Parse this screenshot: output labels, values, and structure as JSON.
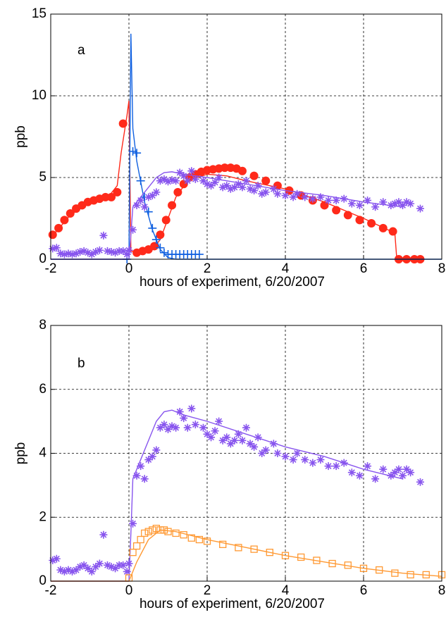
{
  "chart_data": [
    {
      "type": "line",
      "annotation": "a",
      "xlabel": "hours of experiment, 6/20/2007",
      "ylabel": "ppb",
      "xlim": [
        -2,
        8
      ],
      "xticks": [
        -2,
        0,
        2,
        4,
        6,
        8
      ],
      "ylim": [
        0,
        15
      ],
      "yticks": [
        0,
        5,
        10,
        15
      ],
      "grid": true,
      "series": [
        {
          "color": "#ff2a1a",
          "marker": "circle",
          "x": [
            -1.95,
            -1.8,
            -1.65,
            -1.5,
            -1.35,
            -1.2,
            -1.05,
            -0.9,
            -0.75,
            -0.6,
            -0.45,
            -0.3,
            -0.15,
            0.2,
            0.35,
            0.5,
            0.65,
            0.8,
            0.95,
            1.1,
            1.25,
            1.4,
            1.55,
            1.7,
            1.85,
            2.0,
            2.15,
            2.3,
            2.45,
            2.6,
            2.75,
            2.9,
            3.2,
            3.5,
            3.8,
            4.1,
            4.4,
            4.7,
            5.0,
            5.3,
            5.6,
            5.9,
            6.2,
            6.5,
            6.75,
            6.9,
            7.1,
            7.3,
            7.45
          ],
          "values": [
            1.5,
            1.9,
            2.4,
            2.8,
            3.1,
            3.3,
            3.5,
            3.6,
            3.7,
            3.8,
            3.8,
            4.1,
            8.3,
            0.4,
            0.5,
            0.6,
            0.8,
            1.5,
            2.4,
            3.3,
            4.1,
            4.6,
            5.0,
            5.2,
            5.35,
            5.45,
            5.5,
            5.55,
            5.6,
            5.6,
            5.55,
            5.4,
            5.1,
            4.8,
            4.5,
            4.2,
            3.9,
            3.6,
            3.3,
            3.0,
            2.7,
            2.4,
            2.2,
            1.9,
            1.7,
            0,
            0,
            0,
            0
          ]
        },
        {
          "color": "#ff2a1a",
          "marker": "none",
          "x": [
            -2,
            -1.5,
            -1,
            -0.5,
            -0.3,
            -0.2,
            -0.05,
            0,
            0.05,
            0.3,
            0.6,
            0.8,
            1,
            1.2,
            1.5,
            2,
            2.5,
            3,
            4,
            5,
            6,
            6.8,
            6.85,
            7.5
          ],
          "values": [
            1.3,
            2.7,
            3.5,
            3.9,
            4.5,
            6.5,
            8.8,
            9.7,
            0.5,
            0.4,
            0.6,
            1.2,
            2.5,
            3.8,
            4.8,
            5.2,
            5.1,
            4.8,
            4.3,
            3.5,
            2.5,
            1.6,
            0,
            0
          ]
        },
        {
          "color": "#1060e0",
          "marker": "plus",
          "x": [
            -0.05,
            0.1,
            0.2,
            0.3,
            0.4,
            0.5,
            0.6,
            0.7,
            0.8,
            0.9,
            1.0,
            1.1,
            1.2,
            1.3,
            1.4,
            1.5,
            1.6,
            1.7,
            1.8
          ],
          "values": [
            0,
            6.6,
            6.5,
            4.8,
            3.8,
            2.9,
            1.9,
            1.2,
            0.7,
            0.4,
            0.3,
            0.3,
            0.3,
            0.3,
            0.3,
            0.3,
            0.3,
            0.3,
            0.3
          ]
        },
        {
          "color": "#1060e0",
          "marker": "none",
          "x": [
            -2,
            0,
            0.05,
            0.1,
            0.2,
            0.4,
            0.6,
            0.8,
            1.0,
            1.2,
            8
          ],
          "values": [
            0,
            0,
            13.8,
            8,
            6,
            3.5,
            1.8,
            0.6,
            0.1,
            0,
            0
          ]
        },
        {
          "color": "#8855ee",
          "marker": "asterisk",
          "x": [
            -1.95,
            -1.85,
            -1.75,
            -1.65,
            -1.55,
            -1.45,
            -1.35,
            -1.25,
            -1.15,
            -1.05,
            -0.95,
            -0.85,
            -0.75,
            -0.65,
            -0.55,
            -0.45,
            -0.35,
            -0.25,
            -0.15,
            -0.05,
            0.0,
            0.1,
            0.2,
            0.3,
            0.4,
            0.5,
            0.6,
            0.7,
            0.8,
            0.9,
            1.0,
            1.1,
            1.2,
            1.3,
            1.4,
            1.5,
            1.6,
            1.7,
            1.9,
            2.0,
            2.1,
            2.2,
            2.3,
            2.4,
            2.5,
            2.6,
            2.7,
            2.8,
            2.9,
            3.0,
            3.1,
            3.2,
            3.3,
            3.4,
            3.5,
            3.7,
            3.8,
            4.0,
            4.2,
            4.3,
            4.5,
            4.7,
            4.9,
            5.1,
            5.3,
            5.5,
            5.7,
            5.9,
            6.1,
            6.3,
            6.5,
            6.7,
            6.8,
            6.9,
            7.0,
            7.1,
            7.2,
            7.45
          ],
          "values": [
            0.65,
            0.7,
            0.35,
            0.3,
            0.35,
            0.3,
            0.35,
            0.45,
            0.5,
            0.4,
            0.3,
            0.45,
            0.55,
            1.45,
            0.5,
            0.45,
            0.4,
            0.5,
            0.5,
            0.3,
            0.55,
            1.8,
            3.3,
            3.6,
            3.2,
            3.8,
            3.9,
            4.1,
            4.8,
            4.9,
            4.75,
            4.85,
            4.8,
            5.3,
            5.1,
            4.8,
            5.4,
            4.9,
            4.8,
            4.6,
            4.5,
            4.7,
            5.0,
            4.4,
            4.5,
            4.3,
            4.4,
            4.6,
            4.4,
            4.8,
            4.3,
            4.2,
            4.5,
            4.0,
            4.1,
            4.3,
            4.0,
            3.9,
            3.8,
            4.0,
            3.8,
            3.7,
            3.8,
            3.6,
            3.6,
            3.7,
            3.4,
            3.3,
            3.6,
            3.2,
            3.5,
            3.3,
            3.4,
            3.5,
            3.3,
            3.5,
            3.4,
            3.1
          ]
        },
        {
          "color": "#8855ee",
          "marker": "none",
          "x": [
            -2,
            0,
            0.05,
            0.1,
            0.3,
            0.5,
            0.7,
            0.9,
            1.1,
            1.4,
            2,
            3,
            4,
            5,
            6,
            7
          ],
          "values": [
            0,
            0,
            1.5,
            3.2,
            3.8,
            4.4,
            5.0,
            5.3,
            5.35,
            5.2,
            5.0,
            4.6,
            4.2,
            3.9,
            3.5,
            3.2
          ]
        }
      ]
    },
    {
      "type": "line",
      "annotation": "b",
      "xlabel": "hours of experiment, 6/20/2007",
      "ylabel": "ppb",
      "xlim": [
        -2,
        8
      ],
      "xticks": [
        -2,
        0,
        2,
        4,
        6,
        8
      ],
      "ylim": [
        0,
        8
      ],
      "yticks": [
        0,
        2,
        4,
        6,
        8
      ],
      "grid": true,
      "series": [
        {
          "color": "#8855ee",
          "marker": "asterisk",
          "x": [
            -1.95,
            -1.85,
            -1.75,
            -1.65,
            -1.55,
            -1.45,
            -1.35,
            -1.25,
            -1.15,
            -1.05,
            -0.95,
            -0.85,
            -0.75,
            -0.65,
            -0.55,
            -0.45,
            -0.35,
            -0.25,
            -0.15,
            -0.05,
            0.0,
            0.1,
            0.2,
            0.3,
            0.4,
            0.5,
            0.6,
            0.7,
            0.8,
            0.9,
            1.0,
            1.1,
            1.2,
            1.3,
            1.4,
            1.5,
            1.6,
            1.7,
            1.9,
            2.0,
            2.1,
            2.2,
            2.3,
            2.4,
            2.5,
            2.6,
            2.7,
            2.8,
            2.9,
            3.0,
            3.1,
            3.2,
            3.3,
            3.4,
            3.5,
            3.7,
            3.8,
            4.0,
            4.2,
            4.3,
            4.5,
            4.7,
            4.9,
            5.1,
            5.3,
            5.5,
            5.7,
            5.9,
            6.1,
            6.3,
            6.5,
            6.7,
            6.8,
            6.9,
            7.0,
            7.1,
            7.2,
            7.45
          ],
          "values": [
            0.65,
            0.7,
            0.35,
            0.3,
            0.35,
            0.3,
            0.35,
            0.45,
            0.5,
            0.4,
            0.3,
            0.45,
            0.55,
            1.45,
            0.5,
            0.45,
            0.4,
            0.5,
            0.5,
            0.3,
            0.55,
            1.8,
            3.3,
            3.6,
            3.2,
            3.8,
            3.9,
            4.1,
            4.8,
            4.9,
            4.75,
            4.85,
            4.8,
            5.3,
            5.1,
            4.8,
            5.4,
            4.9,
            4.8,
            4.6,
            4.5,
            4.7,
            5.0,
            4.4,
            4.5,
            4.3,
            4.4,
            4.6,
            4.4,
            4.8,
            4.3,
            4.2,
            4.5,
            4.0,
            4.1,
            4.3,
            4.0,
            3.9,
            3.8,
            4.0,
            3.8,
            3.7,
            3.8,
            3.6,
            3.6,
            3.7,
            3.4,
            3.3,
            3.6,
            3.2,
            3.5,
            3.3,
            3.4,
            3.5,
            3.3,
            3.5,
            3.4,
            3.1
          ]
        },
        {
          "color": "#8855ee",
          "marker": "none",
          "x": [
            -2,
            0,
            0.05,
            0.1,
            0.3,
            0.5,
            0.7,
            0.9,
            1.1,
            1.4,
            2,
            3,
            4,
            5,
            6,
            7
          ],
          "values": [
            0,
            0,
            1.5,
            3.2,
            3.8,
            4.4,
            5.0,
            5.3,
            5.35,
            5.2,
            5.0,
            4.6,
            4.2,
            3.9,
            3.5,
            3.2
          ]
        },
        {
          "color": "#ff9933",
          "marker": "square",
          "x": [
            0.0,
            0.1,
            0.2,
            0.3,
            0.4,
            0.5,
            0.6,
            0.7,
            0.8,
            0.9,
            1.0,
            1.2,
            1.4,
            1.6,
            1.8,
            2.0,
            2.4,
            2.8,
            3.2,
            3.6,
            4.0,
            4.4,
            4.8,
            5.2,
            5.6,
            6.0,
            6.4,
            6.8,
            7.2,
            7.6,
            8.0
          ],
          "values": [
            0.1,
            0.9,
            1.1,
            1.3,
            1.5,
            1.55,
            1.6,
            1.65,
            1.6,
            1.6,
            1.55,
            1.5,
            1.45,
            1.35,
            1.3,
            1.25,
            1.15,
            1.05,
            1.0,
            0.9,
            0.8,
            0.75,
            0.65,
            0.55,
            0.5,
            0.4,
            0.35,
            0.25,
            0.2,
            0.2,
            0.2
          ]
        },
        {
          "color": "#ff9933",
          "marker": "none",
          "x": [
            -2,
            0,
            0.2,
            0.5,
            0.8,
            1.2,
            2,
            3,
            4,
            5,
            6,
            7,
            8
          ],
          "values": [
            0,
            0,
            0.6,
            1.3,
            1.6,
            1.55,
            1.3,
            1.05,
            0.8,
            0.6,
            0.4,
            0.25,
            0.15
          ]
        }
      ]
    }
  ]
}
